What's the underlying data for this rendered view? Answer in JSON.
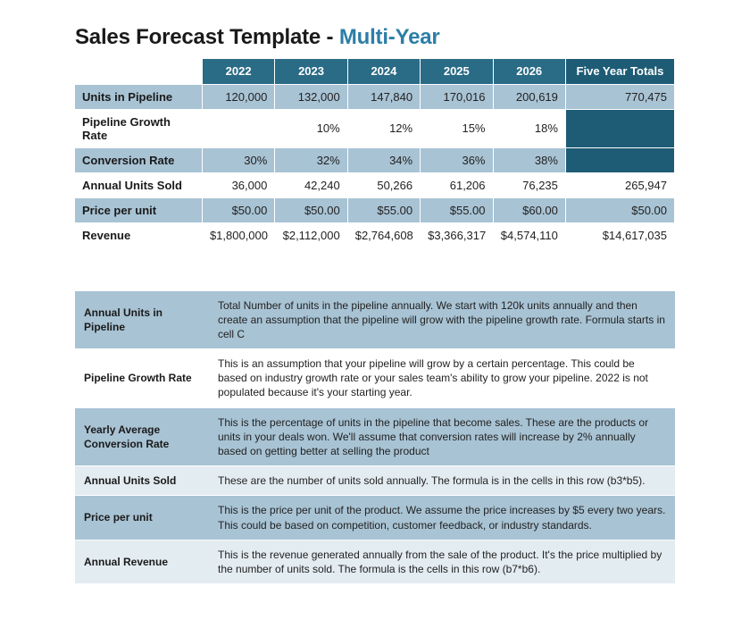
{
  "title": {
    "prefix": "Sales Forecast Template - ",
    "accent": "Multi-Year"
  },
  "colors": {
    "header_teal": "#2a6b86",
    "header_dark_teal": "#1e5c76",
    "row_blue": "#a8c3d4",
    "row_white": "#ffffff",
    "def_blue": "#a8c3d4",
    "def_light": "#e3ecf1",
    "title_accent": "#2d7ea6"
  },
  "forecast": {
    "header": {
      "years": [
        "2022",
        "2023",
        "2024",
        "2025",
        "2026"
      ],
      "total": "Five Year Totals"
    },
    "rows": [
      {
        "label": "Units in Pipeline",
        "cells": [
          "120,000",
          "132,000",
          "147,840",
          "170,016",
          "200,619"
        ],
        "total": "770,475",
        "shade": "blue"
      },
      {
        "label": "Pipeline Growth Rate",
        "cells": [
          "",
          "10%",
          "12%",
          "15%",
          "18%"
        ],
        "total": null,
        "shade": "white",
        "solid_total": true
      },
      {
        "label": "Conversion Rate",
        "cells": [
          "30%",
          "32%",
          "34%",
          "36%",
          "38%"
        ],
        "total": null,
        "shade": "blue",
        "solid_total": true
      },
      {
        "label": "Annual Units Sold",
        "cells": [
          "36,000",
          "42,240",
          "50,266",
          "61,206",
          "76,235"
        ],
        "total": "265,947",
        "shade": "white"
      },
      {
        "label": "Price per unit",
        "cells": [
          "$50.00",
          "$50.00",
          "$55.00",
          "$55.00",
          "$60.00"
        ],
        "total": "$50.00",
        "shade": "blue"
      },
      {
        "label": "Revenue",
        "cells": [
          "$1,800,000",
          "$2,112,000",
          "$2,764,608",
          "$3,366,317",
          "$4,574,110"
        ],
        "total": "$14,617,035",
        "shade": "white"
      }
    ]
  },
  "definitions": [
    {
      "label": "Annual Units in Pipeline",
      "text": "Total Number of units in the pipeline annually. We start with 120k units annually and then create an assumption that the pipeline will grow with the pipeline growth rate. Formula starts in cell C",
      "shade": "blue"
    },
    {
      "label": "Pipeline Growth Rate",
      "text": "This is an assumption that your pipeline will grow by a certain percentage. This could be based on industry growth rate or your sales team's ability to grow your pipeline. 2022 is not populated because it's your starting year.",
      "shade": "white"
    },
    {
      "label": "Yearly Average Conversion Rate",
      "text": "This is the percentage of units in the pipeline that become sales. These are the products or units in your deals won. We'll assume that conversion rates will increase by 2% annually based on getting better at selling the product",
      "shade": "blue"
    },
    {
      "label": "Annual Units Sold",
      "text": "These are the number of units sold annually. The formula is in the cells in this row (b3*b5).",
      "shade": "light"
    },
    {
      "label": "Price per unit",
      "text": "This is the price per unit of the product. We assume the price increases by $5 every two years. This could be based on competition, customer feedback, or industry standards.",
      "shade": "blue"
    },
    {
      "label": "Annual Revenue",
      "text": "This is the revenue generated annually from the sale of the product. It's the price multiplied by the number of units sold. The formula is the cells in this row (b7*b6).",
      "shade": "light"
    }
  ]
}
